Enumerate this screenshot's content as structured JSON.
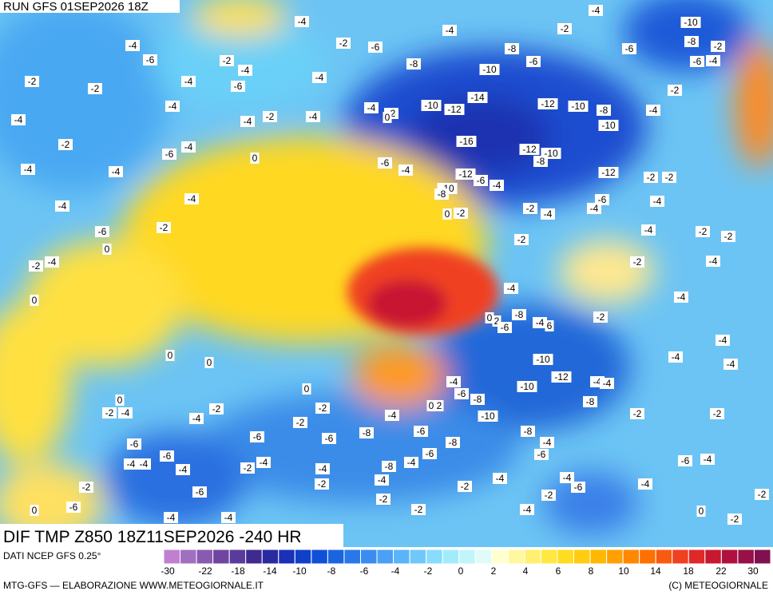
{
  "header": {
    "run": "RUN GFS 01SEP2026 18Z",
    "title": "DIF TMP Z850 18Z11SEP2026 -240 HR"
  },
  "contour_labels": [
    "-4",
    "-4",
    "-2",
    "-10",
    "-4",
    "-4",
    "-2",
    "-6",
    "-8",
    "-8",
    "-2",
    "-6",
    "-2",
    "-4",
    "-8",
    "-6",
    "-6",
    "-6",
    "-4",
    "-2",
    "-2",
    "-4",
    "-6",
    "-4",
    "-10",
    "-2",
    "-4",
    "-4",
    "-2",
    "-10",
    "-12",
    "-14",
    "-12",
    "-10",
    "-8",
    "-4",
    "-4",
    "-4",
    "-2",
    "-4",
    "0",
    "-10",
    "-2",
    "-4",
    "-6",
    "-16",
    "-12",
    "-10",
    "-8",
    "0",
    "-6",
    "-4",
    "-4",
    "-4",
    "-12",
    "-6",
    "-4",
    "-12",
    "-2",
    "-2",
    "-10",
    "-8",
    "-4",
    "-4",
    "-6",
    "-4",
    "-2",
    "-4",
    "-4",
    "0",
    "-2",
    "-6",
    "-2",
    "-4",
    "-2",
    "-2",
    "0",
    "-2",
    "-2",
    "-4",
    "-2",
    "-4",
    "-4",
    "0",
    "-4",
    "0",
    "2",
    "-6",
    "-8",
    "-4",
    "6",
    "-2",
    "-4",
    "0",
    "0",
    "-10",
    "-4",
    "-12",
    "-4",
    "-4",
    "-4",
    "-4",
    "0",
    "-10",
    "-6",
    "-8",
    "0",
    "2",
    "0",
    "-2",
    "-4",
    "-2",
    "-2",
    "-4",
    "-8",
    "-4",
    "-2",
    "-10",
    "-2",
    "-2",
    "-6",
    "-6",
    "-8",
    "-6",
    "-8",
    "-6",
    "-8",
    "-4",
    "-6",
    "-6",
    "-6",
    "-4",
    "-4",
    "-8",
    "-4",
    "-2",
    "-4",
    "-4",
    "-6",
    "-4",
    "-4",
    "-4",
    "-4",
    "-4",
    "-2",
    "-2",
    "-2",
    "-6",
    "-4",
    "-6",
    "-2",
    "-2",
    "-2",
    "-2",
    "-4",
    "0",
    "0",
    "-6",
    "-4",
    "-4",
    "-2"
  ],
  "footer": {
    "source": "DATI NCEP GFS 0.25°",
    "credit": "MTG-GFS — ELABORAZIONE WWW.METEOGIORNALE.IT",
    "copyright": "(C) METEOGIORNALE"
  },
  "colorbar": {
    "ticks": [
      "-30",
      "-22",
      "-18",
      "-14",
      "-10",
      "-8",
      "-6",
      "-4",
      "-2",
      "0",
      "2",
      "4",
      "6",
      "8",
      "10",
      "14",
      "18",
      "22",
      "30"
    ],
    "colors": [
      "#c080d0",
      "#a070c0",
      "#8a5ab0",
      "#6f45a0",
      "#5a3a9a",
      "#3f2a90",
      "#2a2aa0",
      "#1a30b8",
      "#1040c8",
      "#1050d8",
      "#1a64e0",
      "#2a78e8",
      "#3a8cf0",
      "#4aa0f4",
      "#5ab4f8",
      "#70c8fa",
      "#88dcfc",
      "#a0ecfc",
      "#c0f6fa",
      "#e0fcf8",
      "#ffffd0",
      "#fff8a0",
      "#fff070",
      "#ffe840",
      "#ffdc20",
      "#ffcc10",
      "#ffb800",
      "#ffa000",
      "#ff8800",
      "#ff7000",
      "#f85a10",
      "#f04020",
      "#e02828",
      "#c81830",
      "#b01040",
      "#981048",
      "#801050"
    ]
  }
}
